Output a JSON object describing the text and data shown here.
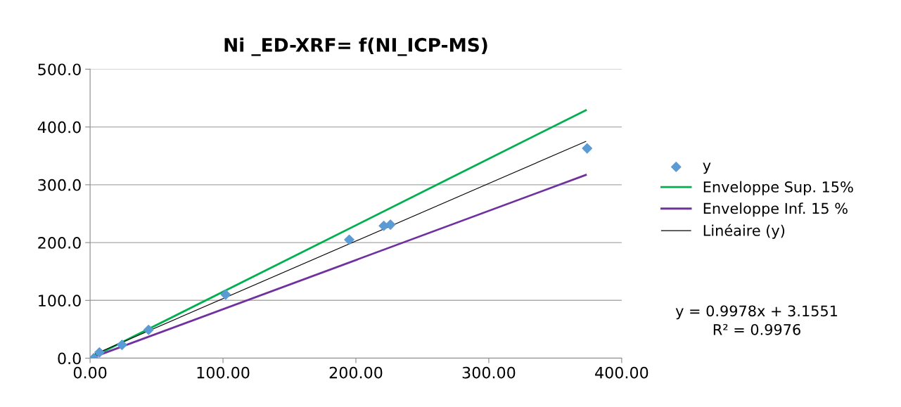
{
  "chart_data": {
    "type": "scatter",
    "title": "Ni _ED-XRF= f(NI_ICP-MS)",
    "series": [
      {
        "name": "y",
        "marker": "diamond",
        "color": "#5b9bd5",
        "x": [
          2.7,
          7,
          24,
          44,
          102,
          195,
          221,
          226,
          374
        ],
        "values": [
          0,
          10,
          23,
          49,
          110,
          205,
          229,
          231,
          363
        ]
      },
      {
        "name": "Enveloppe Sup. 15%",
        "type": "line",
        "color": "#00b050",
        "x": [
          2.7,
          373
        ],
        "values": [
          3,
          429
        ]
      },
      {
        "name": "Enveloppe Inf. 15 %",
        "type": "line",
        "color": "#7030a0",
        "x": [
          2.7,
          373
        ],
        "values": [
          2,
          317
        ]
      },
      {
        "name": "Linéaire (y)",
        "type": "line",
        "color": "#000000",
        "x": [
          2.7,
          373
        ],
        "values": [
          6,
          375
        ]
      }
    ],
    "annotations": [
      "y = 0.9978x + 3.1551\nR² = 0.9976"
    ],
    "xlim": [
      0,
      400
    ],
    "ylim": [
      0,
      500
    ],
    "xticks": [
      {
        "value": 0,
        "label": "0.00"
      },
      {
        "value": 100,
        "label": "100.00"
      },
      {
        "value": 200,
        "label": "200.00"
      },
      {
        "value": 300,
        "label": "300.00"
      },
      {
        "value": 400,
        "label": "400.00"
      }
    ],
    "yticks": [
      {
        "value": 0,
        "label": "0.0"
      },
      {
        "value": 100,
        "label": "100.0"
      },
      {
        "value": 200,
        "label": "200.0"
      },
      {
        "value": 300,
        "label": "300.0"
      },
      {
        "value": 400,
        "label": "400.0"
      },
      {
        "value": 500,
        "label": "500.0"
      }
    ],
    "grid": "y",
    "legend": "right"
  }
}
